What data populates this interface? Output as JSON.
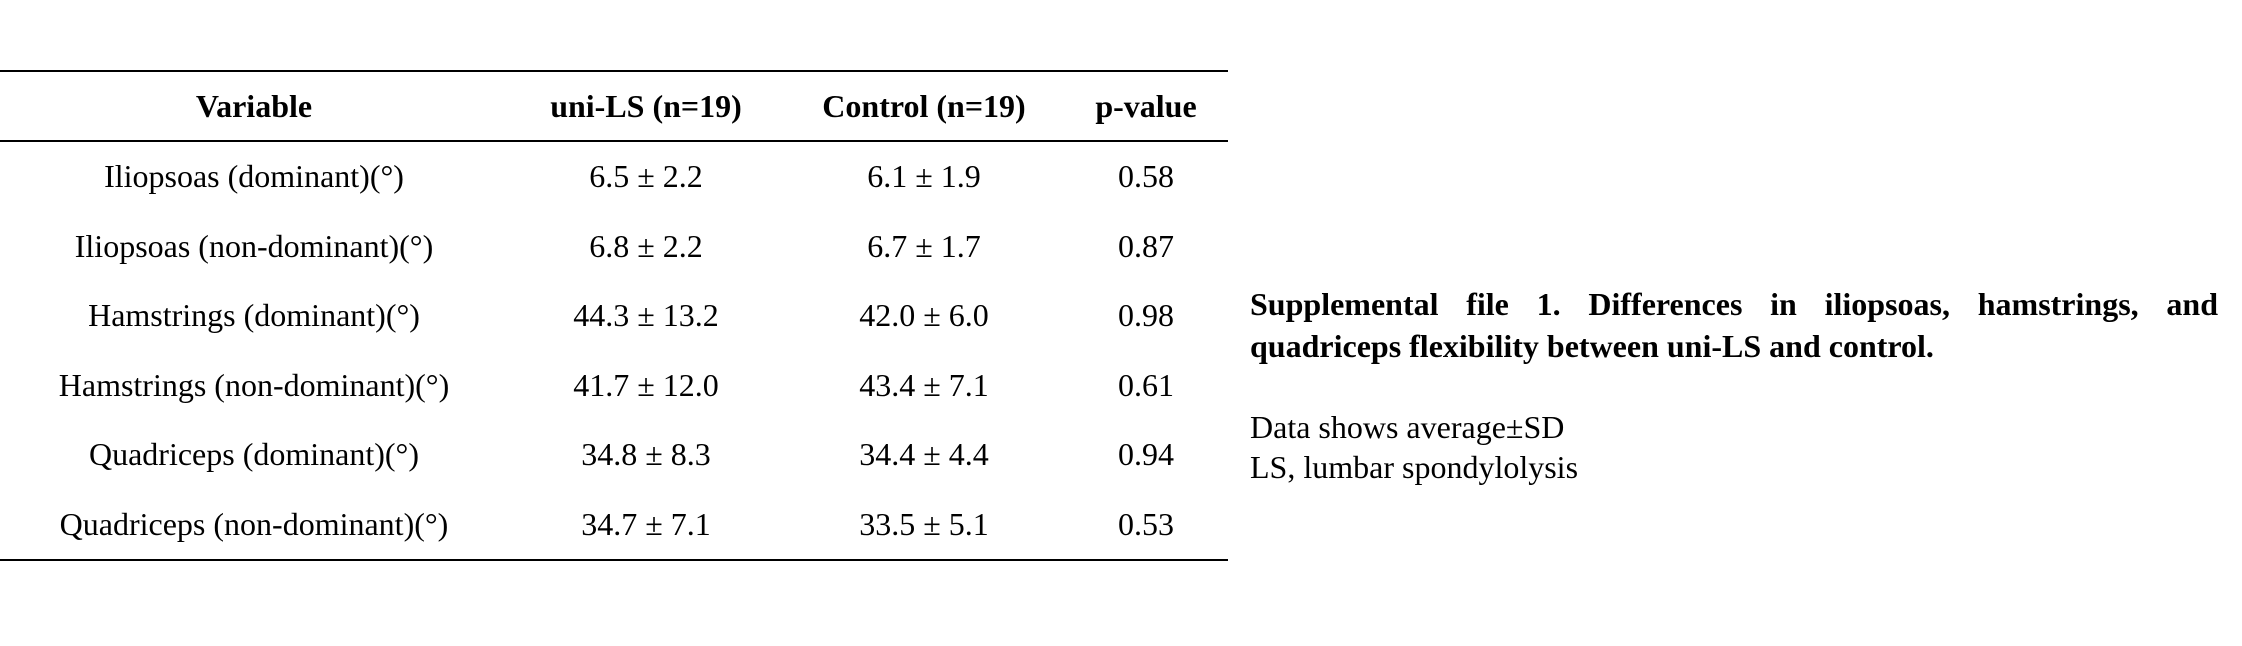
{
  "table": {
    "headers": [
      "Variable",
      "uni-LS (n=19)",
      "Control (n=19)",
      "p-value"
    ],
    "rows": [
      [
        "Iliopsoas (dominant)(°)",
        "6.5 ± 2.2",
        "6.1 ± 1.9",
        "0.58"
      ],
      [
        "Iliopsoas (non-dominant)(°)",
        "6.8 ± 2.2",
        "6.7 ± 1.7",
        "0.87"
      ],
      [
        "Hamstrings (dominant)(°)",
        "44.3 ± 13.2",
        "42.0 ± 6.0",
        "0.98"
      ],
      [
        "Hamstrings (non-dominant)(°)",
        "41.7 ± 12.0",
        "43.4 ± 7.1",
        "0.61"
      ],
      [
        "Quadriceps (dominant)(°)",
        "34.8 ± 8.3",
        "34.4 ± 4.4",
        "0.94"
      ],
      [
        "Quadriceps (non-dominant)(°)",
        "34.7 ± 7.1",
        "33.5 ± 5.1",
        "0.53"
      ]
    ]
  },
  "caption": {
    "title": "Supplemental file 1. Differences in iliopsoas, hamstrings, and quadriceps flexibility between uni-LS and control.",
    "notes": [
      "Data shows average±SD",
      "LS, lumbar spondylolysis"
    ]
  }
}
